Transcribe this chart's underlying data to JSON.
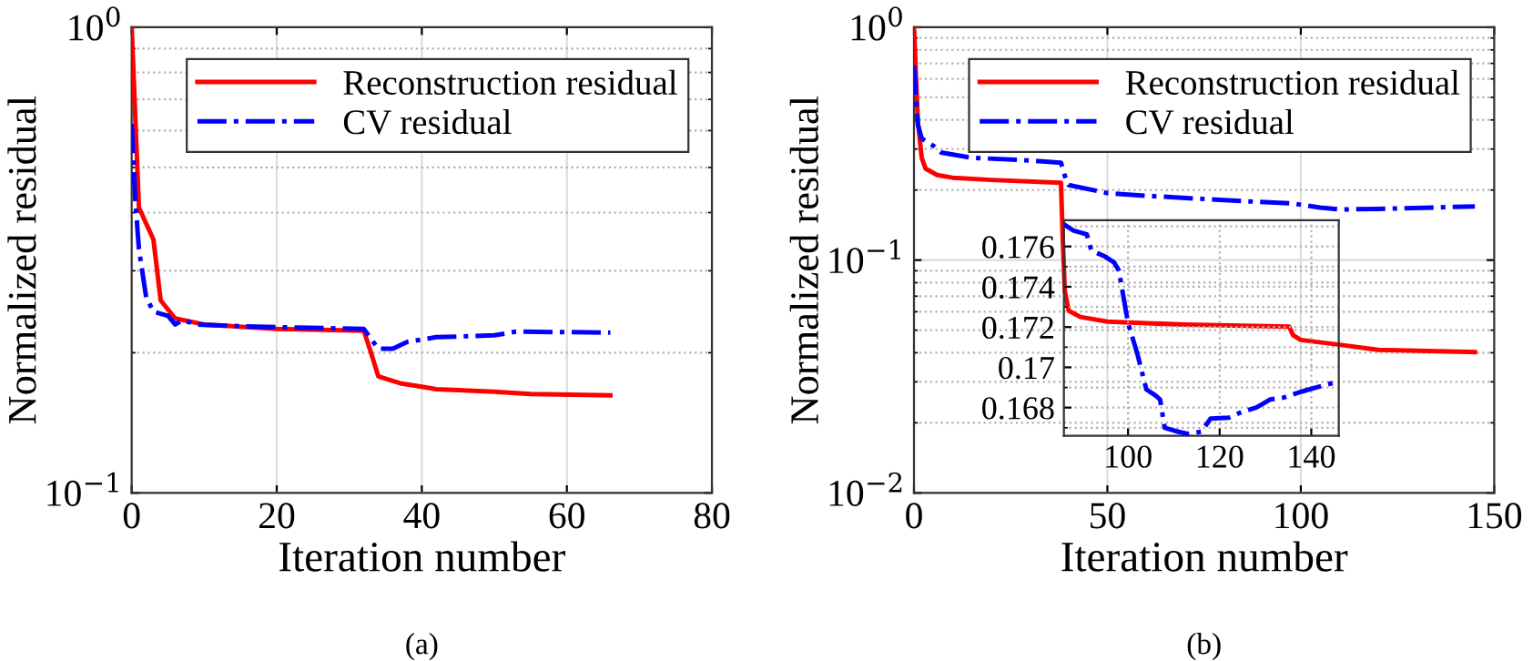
{
  "chart_data": [
    {
      "type": "line",
      "xlabel": "Iteration number",
      "ylabel": "Normalized residual",
      "annotations": [
        "(a)"
      ],
      "log": "y",
      "grid": true,
      "legend": "top right",
      "xlim": [
        0,
        80
      ],
      "xticks": [
        0,
        20,
        40,
        60,
        80
      ],
      "ylim": [
        0.1,
        1
      ],
      "yticks": [
        {
          "value": 0.1,
          "label": "10$^{−1}$"
        },
        {
          "value": 1,
          "label": "10$^{0}$"
        }
      ],
      "series": [
        {
          "name": "Reconstruction residual",
          "color": "#ff0000",
          "line_style": "solid",
          "x": [
            0,
            1,
            3,
            4,
            6,
            10,
            20,
            32,
            33,
            34,
            37,
            40,
            42,
            50,
            55,
            66
          ],
          "values": [
            1.0,
            0.41,
            0.35,
            0.259,
            0.237,
            0.23,
            0.225,
            0.223,
            0.2,
            0.178,
            0.172,
            0.169,
            0.167,
            0.165,
            0.163,
            0.162
          ]
        },
        {
          "name": "CV residual",
          "color": "#0000ff",
          "line_style": "dashdot",
          "x": [
            0,
            0.5,
            1,
            2,
            3,
            5,
            6,
            7,
            9,
            15,
            20,
            32,
            34,
            36,
            38,
            42,
            50,
            53,
            66
          ],
          "values": [
            0.62,
            0.425,
            0.334,
            0.263,
            0.245,
            0.24,
            0.23,
            0.235,
            0.23,
            0.228,
            0.227,
            0.225,
            0.204,
            0.204,
            0.211,
            0.216,
            0.218,
            0.222,
            0.221
          ]
        }
      ]
    },
    {
      "type": "line",
      "xlabel": "Iteration number",
      "ylabel": "Normalized residual",
      "annotations": [
        "(b)"
      ],
      "log": "y",
      "grid": true,
      "legend": "top right",
      "xlim": [
        0,
        150
      ],
      "xticks": [
        0,
        50,
        100,
        150
      ],
      "ylim": [
        0.01,
        1
      ],
      "yticks": [
        {
          "value": 0.01,
          "label": "10$^{−2}$"
        },
        {
          "value": 0.1,
          "label": "10$^{−1}$"
        },
        {
          "value": 1,
          "label": "10$^{0}$"
        }
      ],
      "series": [
        {
          "name": "Reconstruction residual",
          "color": "#ff0000",
          "line_style": "solid",
          "x": [
            0,
            1,
            2,
            3,
            6,
            10,
            20,
            38,
            38.5,
            39,
            40,
            43,
            50,
            70,
            97,
            98,
            100,
            110,
            120,
            145
          ],
          "values": [
            1.0,
            0.394,
            0.275,
            0.247,
            0.232,
            0.226,
            0.221,
            0.215,
            0.119,
            0.0734,
            0.0606,
            0.057,
            0.0544,
            0.0528,
            0.0518,
            0.0476,
            0.0454,
            0.0433,
            0.0412,
            0.0403
          ]
        },
        {
          "name": "CV residual",
          "color": "#0000ff",
          "line_style": "dashdot",
          "x": [
            0,
            1,
            2,
            5,
            7,
            15,
            30,
            38,
            39,
            40,
            50,
            60,
            80,
            98,
            105,
            110,
            120,
            145
          ],
          "values": [
            0.685,
            0.383,
            0.333,
            0.31,
            0.29,
            0.275,
            0.268,
            0.262,
            0.23,
            0.21,
            0.194,
            0.189,
            0.181,
            0.175,
            0.168,
            0.165,
            0.166,
            0.17
          ]
        }
      ]
    },
    {
      "type": "line",
      "grid": true,
      "xlim": [
        86,
        146
      ],
      "xticks": [
        100,
        120,
        140
      ],
      "ylim": [
        0.1666,
        0.1773
      ],
      "yticks": [
        0.168,
        0.17,
        0.172,
        0.174,
        0.176
      ],
      "series": [
        {
          "color": "#0000ff",
          "line_style": "dashdot",
          "x": [
            86,
            88,
            91,
            92,
            95,
            97,
            98,
            100,
            102,
            104,
            106,
            107,
            108,
            111,
            113,
            116,
            118,
            122,
            125,
            128,
            131,
            134,
            138,
            141,
            146
          ],
          "values": [
            0.1771,
            0.1768,
            0.1766,
            0.1758,
            0.1755,
            0.1752,
            0.1748,
            0.1722,
            0.1707,
            0.1689,
            0.1686,
            0.1684,
            0.167,
            0.1668,
            0.1667,
            0.1668,
            0.16745,
            0.1675,
            0.1678,
            0.168,
            0.1684,
            0.1685,
            0.1688,
            0.169,
            0.1693
          ]
        }
      ]
    }
  ]
}
